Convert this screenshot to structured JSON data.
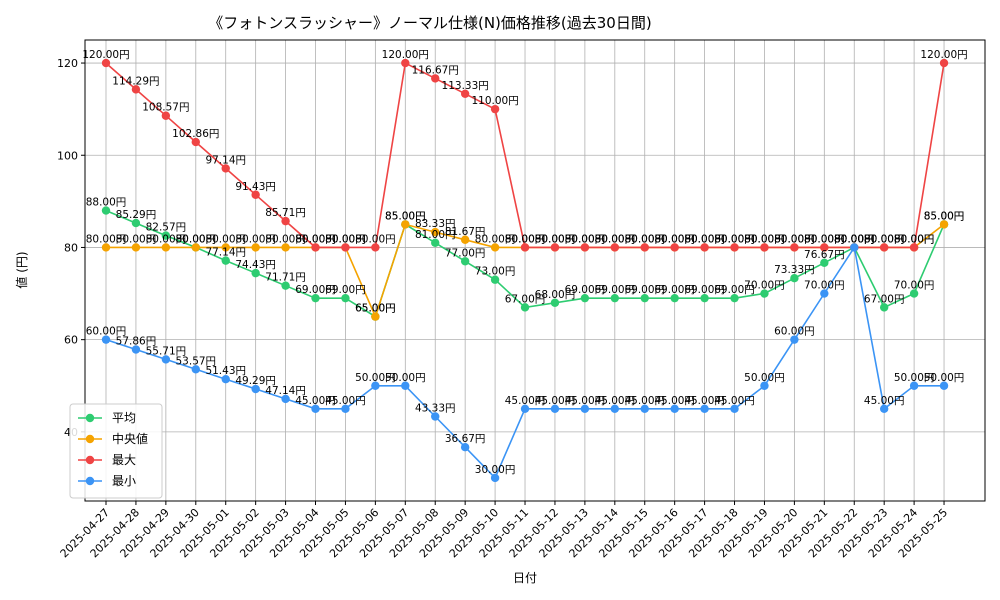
{
  "chart_data": {
    "type": "line",
    "title": "《フォトンスラッシャー》ノーマル仕様(N)価格推移(過去30日間)",
    "xlabel": "日付",
    "ylabel": "値 (円)",
    "ylim": [
      25,
      125
    ],
    "yticks": [
      40,
      60,
      80,
      100,
      120
    ],
    "grid": true,
    "legend_position": "lower-left",
    "value_suffix": "円",
    "categories": [
      "2025-04-27",
      "2025-04-28",
      "2025-04-29",
      "2025-04-30",
      "2025-05-01",
      "2025-05-02",
      "2025-05-03",
      "2025-05-04",
      "2025-05-05",
      "2025-05-06",
      "2025-05-07",
      "2025-05-08",
      "2025-05-09",
      "2025-05-10",
      "2025-05-11",
      "2025-05-12",
      "2025-05-13",
      "2025-05-14",
      "2025-05-15",
      "2025-05-16",
      "2025-05-17",
      "2025-05-18",
      "2025-05-19",
      "2025-05-20",
      "2025-05-21",
      "2025-05-22",
      "2025-05-23",
      "2025-05-24",
      "2025-05-25"
    ],
    "series": [
      {
        "name": "平均",
        "color": "#2ecc71",
        "values": [
          88.0,
          85.29,
          82.57,
          80.0,
          77.14,
          74.43,
          71.71,
          69.0,
          69.0,
          65.0,
          85.0,
          81.0,
          77.0,
          73.0,
          67.0,
          68.0,
          69.0,
          69.0,
          69.0,
          69.0,
          69.0,
          69.0,
          70.0,
          73.33,
          76.67,
          80.0,
          67.0,
          70.0,
          85.0
        ]
      },
      {
        "name": "中央値",
        "color": "#f5a300",
        "values": [
          80.0,
          80.0,
          80.0,
          80.0,
          80.0,
          80.0,
          80.0,
          80.0,
          80.0,
          65.0,
          85.0,
          83.33,
          81.67,
          80.0,
          80.0,
          80.0,
          80.0,
          80.0,
          80.0,
          80.0,
          80.0,
          80.0,
          80.0,
          80.0,
          80.0,
          80.0,
          80.0,
          80.0,
          85.0
        ]
      },
      {
        "name": "最大",
        "color": "#ef4444",
        "values": [
          120.0,
          114.29,
          108.57,
          102.86,
          97.14,
          91.43,
          85.71,
          80.0,
          80.0,
          80.0,
          120.0,
          116.67,
          113.33,
          110.0,
          80.0,
          80.0,
          80.0,
          80.0,
          80.0,
          80.0,
          80.0,
          80.0,
          80.0,
          80.0,
          80.0,
          80.0,
          80.0,
          80.0,
          120.0
        ]
      },
      {
        "name": "最小",
        "color": "#3b94f5",
        "values": [
          60.0,
          57.86,
          55.71,
          53.57,
          51.43,
          49.29,
          47.14,
          45.0,
          45.0,
          50.0,
          50.0,
          43.33,
          36.67,
          30.0,
          45.0,
          45.0,
          45.0,
          45.0,
          45.0,
          45.0,
          45.0,
          45.0,
          50.0,
          60.0,
          70.0,
          80.0,
          45.0,
          50.0,
          50.0
        ]
      }
    ]
  }
}
